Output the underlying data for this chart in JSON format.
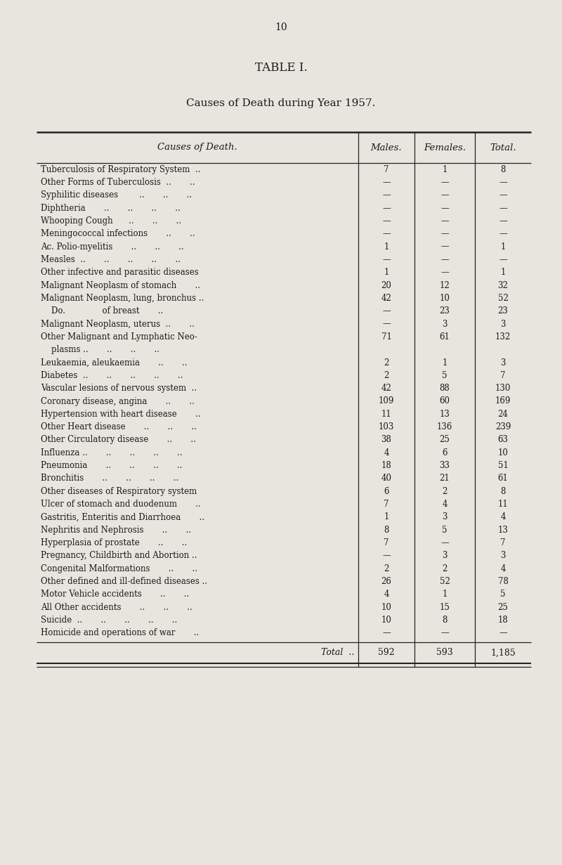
{
  "page_number": "10",
  "table_title": "TABLE I.",
  "table_subtitle": "Causes of Death during Year 1957.",
  "col_headers": [
    "Causes of Death.",
    "Males.",
    "Females.",
    "Total."
  ],
  "rows": [
    [
      "Tuberculosis of Respiratory System  ..",
      "7",
      "1",
      "8"
    ],
    [
      "Other Forms of Tuberculosis  ..       ..",
      "—",
      "—",
      "—"
    ],
    [
      "Syphilitic diseases        ..       ..       ..",
      "—",
      "—",
      "—"
    ],
    [
      "Diphtheria       ..       ..       ..       ..",
      "—",
      "—",
      "—"
    ],
    [
      "Whooping Cough      ..       ..       ..",
      "—",
      "—",
      "—"
    ],
    [
      "Meningococcal infections       ..       ..",
      "—",
      "—",
      "—"
    ],
    [
      "Ac. Polio-myelitis       ..       ..       ..",
      "1",
      "—",
      "1"
    ],
    [
      "Measles  ..       ..       ..       ..       ..",
      "—",
      "—",
      "—"
    ],
    [
      "Other infective and parasitic diseases",
      "1",
      "—",
      "1"
    ],
    [
      "Malignant Neoplasm of stomach       ..",
      "20",
      "12",
      "32"
    ],
    [
      "Malignant Neoplasm, lung, bronchus ..",
      "42",
      "10",
      "52"
    ],
    [
      "    Do.              of breast       ..",
      "—",
      "23",
      "23"
    ],
    [
      "Malignant Neoplasm, uterus  ..       ..",
      "—",
      "3",
      "3"
    ],
    [
      "Other Malignant and Lymphatic Neo-",
      "71",
      "61",
      "132"
    ],
    [
      "    plasms ..       ..       ..       ..",
      "",
      "",
      ""
    ],
    [
      "Leukaemia, aleukaemia       ..       ..",
      "2",
      "1",
      "3"
    ],
    [
      "Diabetes  ..       ..       ..       ..       ..",
      "2",
      "5",
      "7"
    ],
    [
      "Vascular lesions of nervous system  ..",
      "42",
      "88",
      "130"
    ],
    [
      "Coronary disease, angina       ..       ..",
      "109",
      "60",
      "169"
    ],
    [
      "Hypertension with heart disease       ..",
      "11",
      "13",
      "24"
    ],
    [
      "Other Heart disease       ..       ..       ..",
      "103",
      "136",
      "239"
    ],
    [
      "Other Circulatory disease       ..       ..",
      "38",
      "25",
      "63"
    ],
    [
      "Influenza ..       ..       ..       ..       ..",
      "4",
      "6",
      "10"
    ],
    [
      "Pneumonia       ..       ..       ..       ..",
      "18",
      "33",
      "51"
    ],
    [
      "Bronchitis       ..       ..       ..       ..",
      "40",
      "21",
      "61"
    ],
    [
      "Other diseases of Respiratory system",
      "6",
      "2",
      "8"
    ],
    [
      "Ulcer of stomach and duodenum       ..",
      "7",
      "4",
      "11"
    ],
    [
      "Gastritis, Enteritis and Diarrhoea       ..",
      "1",
      "3",
      "4"
    ],
    [
      "Nephritis and Nephrosis       ..       ..",
      "8",
      "5",
      "13"
    ],
    [
      "Hyperplasia of prostate       ..       ..",
      "7",
      "—",
      "7"
    ],
    [
      "Pregnancy, Childbirth and Abortion ..",
      "—",
      "3",
      "3"
    ],
    [
      "Congenital Malformations       ..       ..",
      "2",
      "2",
      "4"
    ],
    [
      "Other defined and ill-defined diseases ..",
      "26",
      "52",
      "78"
    ],
    [
      "Motor Vehicle accidents       ..       ..",
      "4",
      "1",
      "5"
    ],
    [
      "All Other accidents       ..       ..       ..",
      "10",
      "15",
      "25"
    ],
    [
      "Suicide  ..       ..       ..       ..       ..",
      "10",
      "8",
      "18"
    ],
    [
      "Homicide and operations of war       ..",
      "—",
      "—",
      "—"
    ]
  ],
  "total_row": [
    "Total  ..",
    "592",
    "593",
    "1,185"
  ],
  "two_line_idx": 13,
  "bg_color": "#e8e5de",
  "text_color": "#1a1a1a",
  "line_color": "#222222",
  "font_size_title": 12,
  "font_size_subtitle": 11,
  "font_size_header": 9.5,
  "font_size_body": 8.5,
  "font_size_page": 10
}
